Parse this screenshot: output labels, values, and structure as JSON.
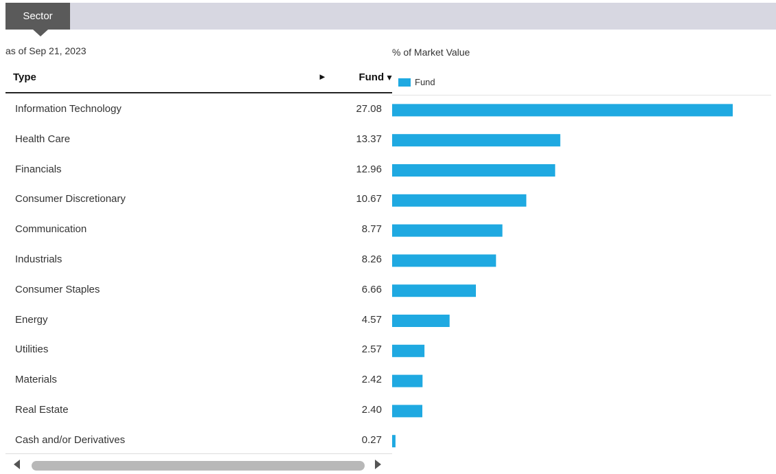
{
  "tab": {
    "label": "Sector"
  },
  "as_of": "as of Sep 21, 2023",
  "table": {
    "header_type": "Type",
    "header_fund": "Fund",
    "arrow_icon": "play-right-icon",
    "sort_icon": "caret-down-icon"
  },
  "colors": {
    "bar": "#1fa9e1",
    "tab": "#5a5a5a",
    "band": "#d7d7e1"
  },
  "chart_data": {
    "type": "bar",
    "orientation": "horizontal",
    "title": "% of Market Value",
    "legend": [
      "Fund"
    ],
    "legend_placement": "top-left",
    "grid": false,
    "categories": [
      "Information Technology",
      "Health Care",
      "Financials",
      "Consumer Discretionary",
      "Communication",
      "Industrials",
      "Consumer Staples",
      "Energy",
      "Utilities",
      "Materials",
      "Real Estate",
      "Cash and/or Derivatives"
    ],
    "value_labels": [
      "27.08",
      "13.37",
      "12.96",
      "10.67",
      "8.77",
      "8.26",
      "6.66",
      "4.57",
      "2.57",
      "2.42",
      "2.40",
      "0.27"
    ],
    "series": [
      {
        "name": "Fund",
        "values": [
          27.08,
          13.37,
          12.96,
          10.67,
          8.77,
          8.26,
          6.66,
          4.57,
          2.57,
          2.42,
          2.4,
          0.27
        ]
      }
    ],
    "xlim": [
      0,
      30
    ]
  }
}
